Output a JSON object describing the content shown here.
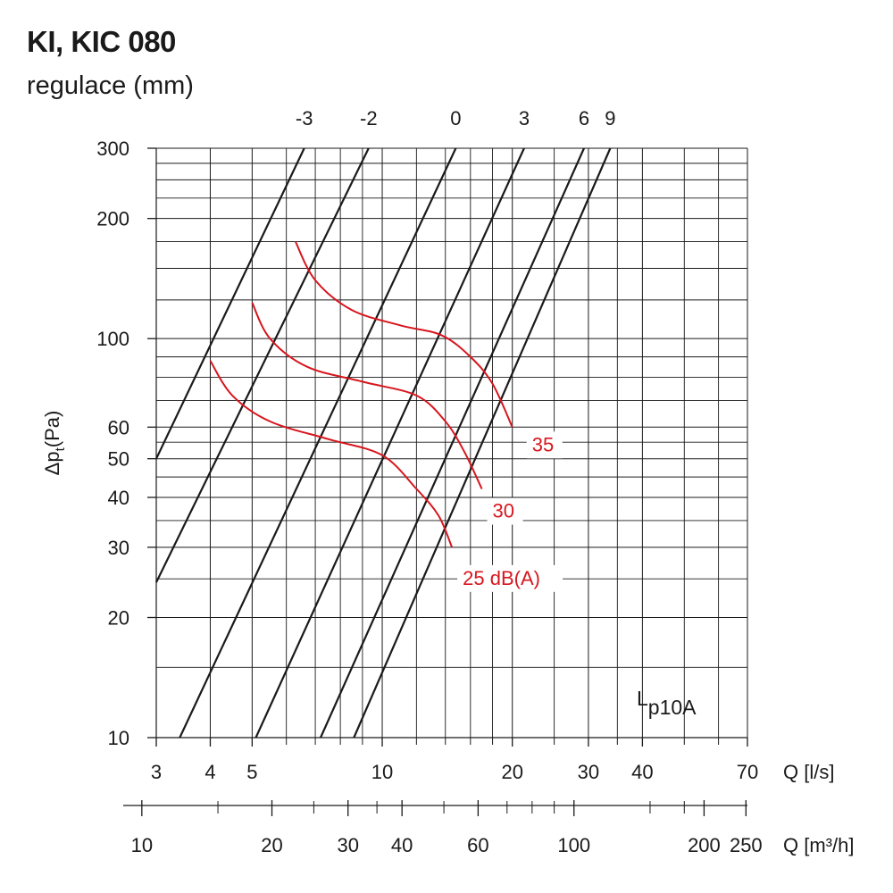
{
  "header": {
    "title": "KI, KIC 080",
    "subtitle": "regulace (mm)"
  },
  "chart_data": {
    "type": "line",
    "x_scale": "log",
    "y_scale": "log",
    "xlim": [
      3,
      70
    ],
    "ylim": [
      10,
      300
    ],
    "ylabel_main": "Δp",
    "ylabel_sub": "t",
    "ylabel_unit": "(Pa)",
    "xlabel": "Q [l/s]",
    "x2label": "Q [m³/h]",
    "y_ticks": [
      10,
      20,
      30,
      40,
      50,
      60,
      100,
      200,
      300
    ],
    "y_tick_labels": [
      "10",
      "20",
      "30",
      "40",
      "50",
      "60",
      "100",
      "200",
      "300"
    ],
    "y_minor_grid": [
      15,
      25,
      35,
      45,
      55,
      70,
      80,
      90,
      125,
      150,
      175,
      225,
      250,
      275
    ],
    "x_ticks": [
      3,
      4,
      5,
      10,
      20,
      30,
      40,
      70
    ],
    "x_tick_labels": [
      "3",
      "4",
      "5",
      "10",
      "20",
      "30",
      "40",
      "70"
    ],
    "x_minor_grid": [
      6,
      7,
      8,
      9,
      12,
      14,
      16,
      18,
      25,
      35,
      50,
      60
    ],
    "x2_ticks": [
      10,
      20,
      30,
      40,
      60,
      100,
      200,
      250
    ],
    "x2_tick_labels": [
      "10",
      "20",
      "30",
      "40",
      "60",
      "100",
      "200",
      "250"
    ],
    "x2_minor_ticks": [
      15,
      25,
      35,
      50,
      70,
      80,
      90,
      150,
      180
    ],
    "regulation_series": [
      {
        "name": "-3",
        "points": [
          [
            3.0,
            50
          ],
          [
            6.6,
            300
          ]
        ]
      },
      {
        "name": "-2",
        "points": [
          [
            3.0,
            24.5
          ],
          [
            9.3,
            300
          ]
        ]
      },
      {
        "name": "0",
        "points": [
          [
            3.4,
            10
          ],
          [
            14.8,
            300
          ]
        ]
      },
      {
        "name": "3",
        "points": [
          [
            5.1,
            10
          ],
          [
            21.3,
            300
          ]
        ]
      },
      {
        "name": "6",
        "points": [
          [
            7.2,
            10
          ],
          [
            29.3,
            300
          ]
        ]
      },
      {
        "name": "9",
        "points": [
          [
            8.6,
            10
          ],
          [
            33.7,
            300
          ]
        ]
      }
    ],
    "noise_series": [
      {
        "name": "35",
        "points": [
          [
            6.3,
            175
          ],
          [
            7.0,
            140
          ],
          [
            8.5,
            118
          ],
          [
            11.0,
            108
          ],
          [
            13.7,
            102
          ],
          [
            16.0,
            90
          ],
          [
            18.0,
            77
          ],
          [
            20.0,
            60
          ]
        ]
      },
      {
        "name": "30",
        "points": [
          [
            5.0,
            123
          ],
          [
            5.5,
            100
          ],
          [
            6.7,
            85
          ],
          [
            9.0,
            78
          ],
          [
            12.0,
            72
          ],
          [
            14.0,
            62
          ],
          [
            15.5,
            52
          ],
          [
            17.0,
            42
          ]
        ]
      },
      {
        "name": "25 dB(A)",
        "points": [
          [
            4.0,
            88
          ],
          [
            4.5,
            72
          ],
          [
            5.5,
            62
          ],
          [
            7.5,
            56
          ],
          [
            10.0,
            51
          ],
          [
            12.0,
            42
          ],
          [
            13.5,
            36
          ],
          [
            14.5,
            30
          ]
        ]
      }
    ],
    "annotation": {
      "main": "L",
      "sub": "p10A"
    },
    "colors": {
      "grid": "#1a1a1a",
      "regulation": "#1a1a1a",
      "noise": "#d7161e"
    }
  }
}
